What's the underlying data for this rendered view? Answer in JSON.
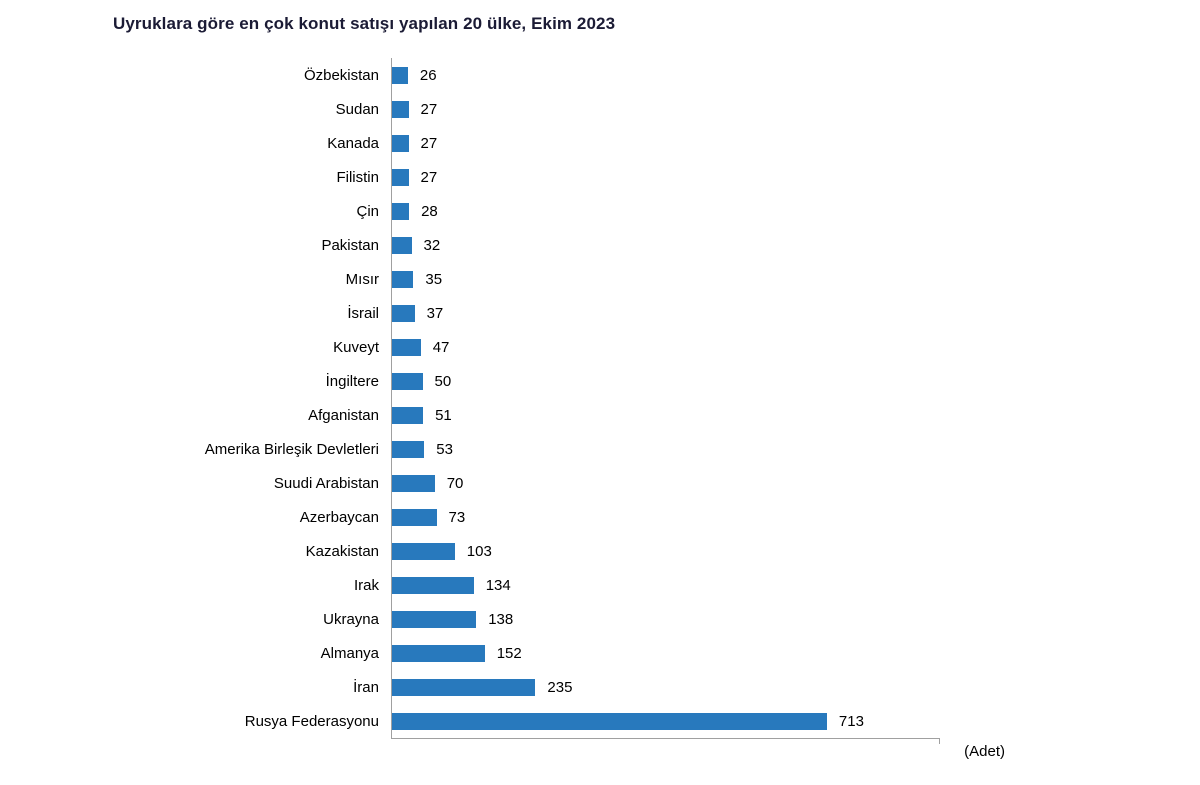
{
  "title": "Uyruklara göre en çok konut satışı yapılan 20 ülke, Ekim 2023",
  "unit_label": "(Adet)",
  "colors": {
    "bar": "#2879bd",
    "axis": "#a0a0a0",
    "title": "#1b1b35",
    "text": "#000000"
  },
  "chart_data": {
    "type": "bar",
    "orientation": "horizontal",
    "title": "Uyruklara göre en çok konut satışı yapılan 20 ülke, Ekim 2023",
    "xlabel": "(Adet)",
    "ylabel": "",
    "xlim": [
      0,
      900
    ],
    "grid": false,
    "legend": false,
    "categories": [
      "Özbekistan",
      "Sudan",
      "Kanada",
      "Filistin",
      "Çin",
      "Pakistan",
      "Mısır",
      "İsrail",
      "Kuveyt",
      "İngiltere",
      "Afganistan",
      "Amerika Birleşik Devletleri",
      "Suudi Arabistan",
      "Azerbaycan",
      "Kazakistan",
      "Irak",
      "Ukrayna",
      "Almanya",
      "İran",
      "Rusya Federasyonu"
    ],
    "values": [
      26,
      27,
      27,
      27,
      28,
      32,
      35,
      37,
      47,
      50,
      51,
      53,
      70,
      73,
      103,
      134,
      138,
      152,
      235,
      713
    ]
  }
}
